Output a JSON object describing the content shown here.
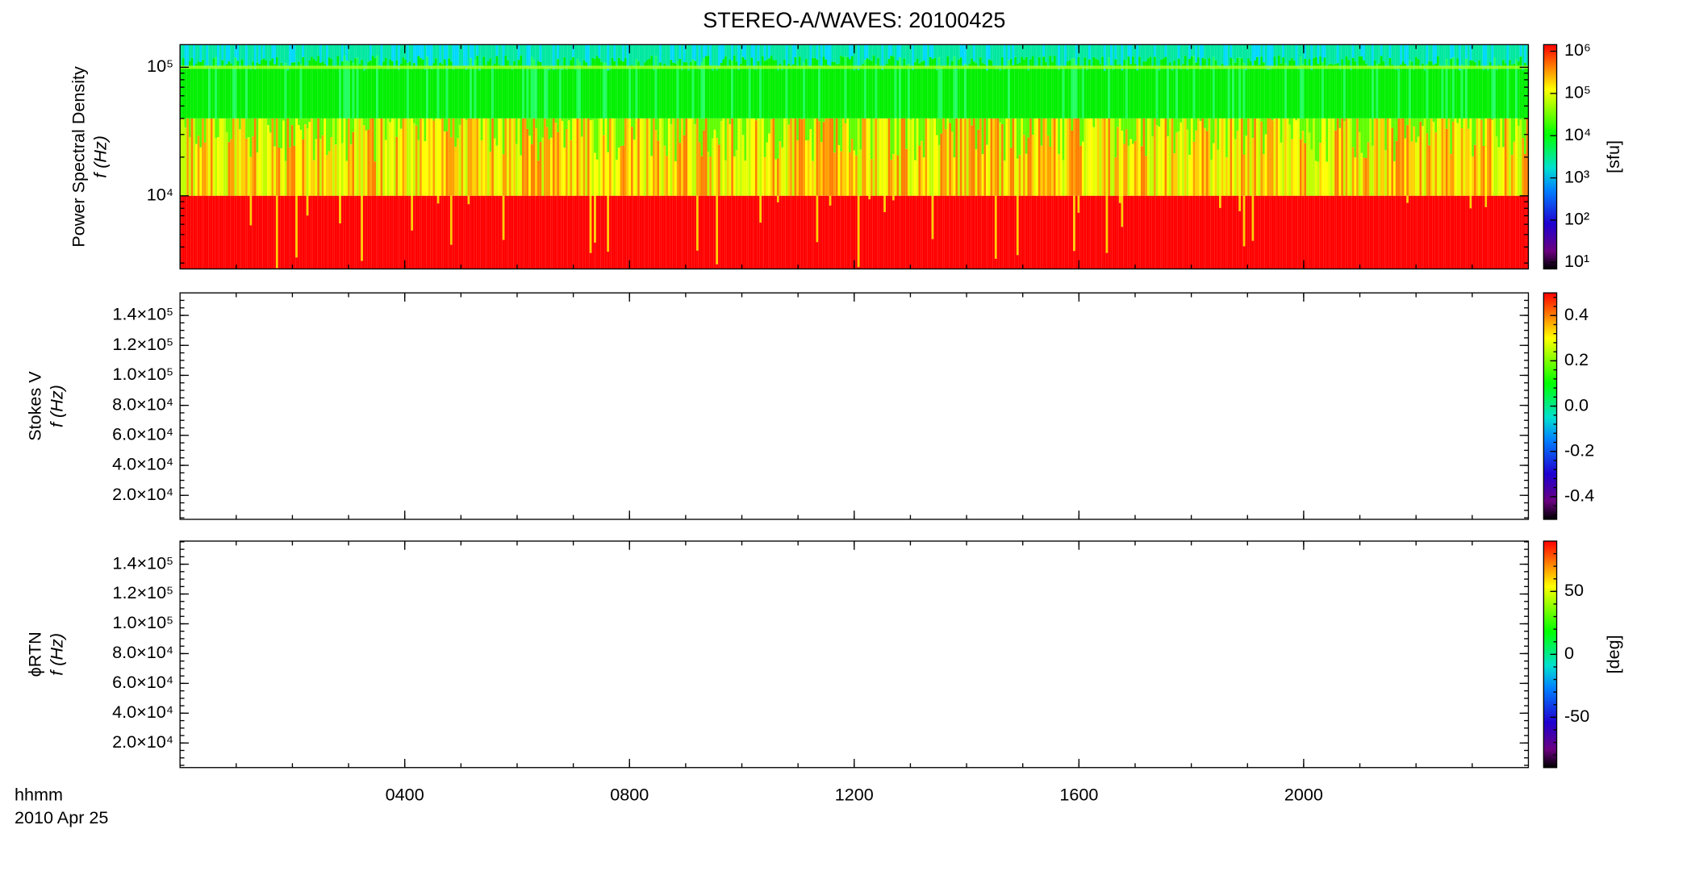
{
  "chart_data": [
    {
      "type": "heatmap",
      "title": "STEREO-A/WAVES: 20100425",
      "ylabel": [
        "Power Spectral Density",
        "f (Hz)"
      ],
      "ylog": true,
      "ylim": [
        2700,
        150000
      ],
      "yticks": [
        {
          "value": 10000,
          "label": "10⁴"
        },
        {
          "value": 100000,
          "label": "10⁵"
        }
      ],
      "colorbar": {
        "colormap": "rainbow",
        "log": true,
        "range": [
          7,
          1430000
        ],
        "ticks": [
          {
            "value": 10,
            "label": "10¹"
          },
          {
            "value": 100,
            "label": "10²"
          },
          {
            "value": 1000,
            "label": "10³"
          },
          {
            "value": 10000,
            "label": "10⁴"
          },
          {
            "value": 100000,
            "label": "10⁵"
          },
          {
            "value": 1000000,
            "label": "10⁶"
          }
        ],
        "label": "[sfu]"
      }
    },
    {
      "type": "heatmap",
      "ylabel": [
        "Stokes V",
        "f (Hz)"
      ],
      "ylog": false,
      "ylim": [
        4000,
        155000
      ],
      "yticks": [
        {
          "value": 20000,
          "label": "2.0×10⁴"
        },
        {
          "value": 40000,
          "label": "4.0×10⁴"
        },
        {
          "value": 60000,
          "label": "6.0×10⁴"
        },
        {
          "value": 80000,
          "label": "8.0×10⁴"
        },
        {
          "value": 100000,
          "label": "1.0×10⁵"
        },
        {
          "value": 120000,
          "label": "1.2×10⁵"
        },
        {
          "value": 140000,
          "label": "1.4×10⁵"
        }
      ],
      "colorbar": {
        "colormap": "rainbow",
        "log": false,
        "range": [
          -0.5,
          0.5
        ],
        "ticks": [
          -0.4,
          -0.2,
          {
            "value": 0,
            "label": "0.0"
          },
          0.2,
          0.4
        ]
      }
    },
    {
      "type": "heatmap",
      "ylabel": [
        "ϕRTN",
        "f (Hz)"
      ],
      "ylog": false,
      "ylim": [
        3500,
        155500
      ],
      "yticks": [
        {
          "value": 20000,
          "label": "2.0×10⁴"
        },
        {
          "value": 40000,
          "label": "4.0×10⁴"
        },
        {
          "value": 60000,
          "label": "6.0×10⁴"
        },
        {
          "value": 80000,
          "label": "8.0×10⁴"
        },
        {
          "value": 100000,
          "label": "1.0×10⁵"
        },
        {
          "value": 120000,
          "label": "1.2×10⁵"
        },
        {
          "value": 140000,
          "label": "1.4×10⁵"
        }
      ],
      "colorbar": {
        "colormap": "rainbow",
        "log": false,
        "range": [
          -90,
          90
        ],
        "ticks": [
          -50,
          0,
          50
        ],
        "label": "[deg]"
      },
      "xlim": [
        0,
        24
      ],
      "xticks": [
        {
          "value": 4,
          "label": "0400"
        },
        {
          "value": 8,
          "label": "0800"
        },
        {
          "value": 12,
          "label": "1200"
        },
        {
          "value": 16,
          "label": "1600"
        },
        {
          "value": 20,
          "label": "2000"
        }
      ],
      "xlabel": "hhmm",
      "date": "2010 Apr 25"
    }
  ]
}
